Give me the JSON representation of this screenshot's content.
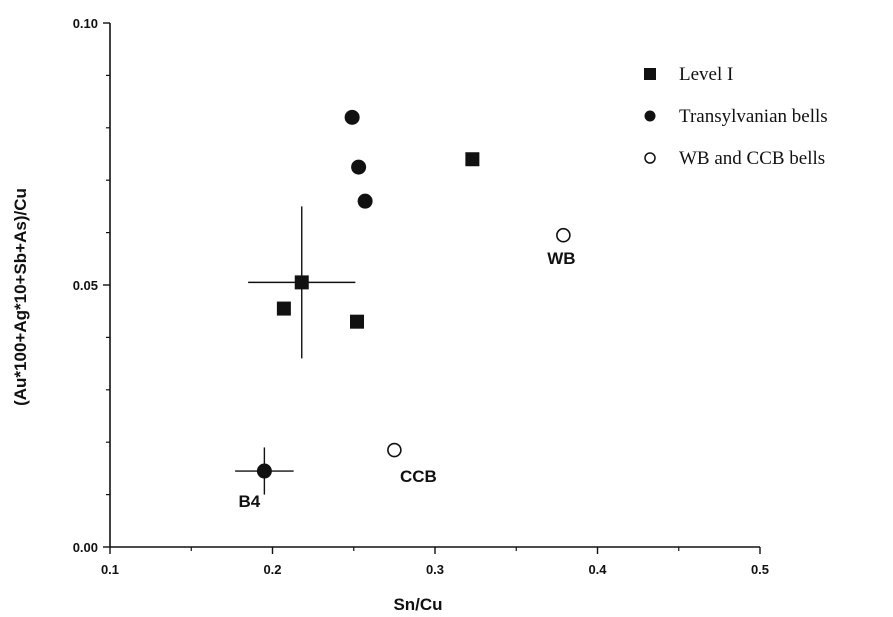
{
  "chart_data": {
    "type": "scatter",
    "title": "",
    "xlabel": "Sn/Cu",
    "ylabel": "(Au*100+Ag*10+Sb+As)/Cu",
    "xlim": [
      0.1,
      0.5
    ],
    "ylim": [
      0.0,
      0.1
    ],
    "x_ticks": [
      "0.1",
      "0.2",
      "0.3",
      "0.4",
      "0.5"
    ],
    "y_ticks": [
      "0.00",
      "0.05",
      "0.10"
    ],
    "grid": false,
    "legend_position": "top-right",
    "series": [
      {
        "name": "Level I",
        "marker": "filled-square",
        "points": [
          {
            "x": 0.218,
            "y": 0.0505,
            "xerr": 0.033,
            "yerr": 0.0145
          },
          {
            "x": 0.207,
            "y": 0.0455
          },
          {
            "x": 0.252,
            "y": 0.043
          },
          {
            "x": 0.323,
            "y": 0.074
          }
        ]
      },
      {
        "name": "Transylvanian bells",
        "marker": "filled-circle",
        "points": [
          {
            "x": 0.249,
            "y": 0.082
          },
          {
            "x": 0.253,
            "y": 0.0725
          },
          {
            "x": 0.257,
            "y": 0.066
          },
          {
            "x": 0.195,
            "y": 0.0145,
            "xerr": 0.018,
            "yerr": 0.0045,
            "label": "B4"
          }
        ]
      },
      {
        "name": "WB and CCB bells",
        "marker": "open-circle",
        "points": [
          {
            "x": 0.379,
            "y": 0.0595,
            "label": "WB"
          },
          {
            "x": 0.275,
            "y": 0.0185,
            "label": "CCB"
          }
        ]
      }
    ]
  }
}
